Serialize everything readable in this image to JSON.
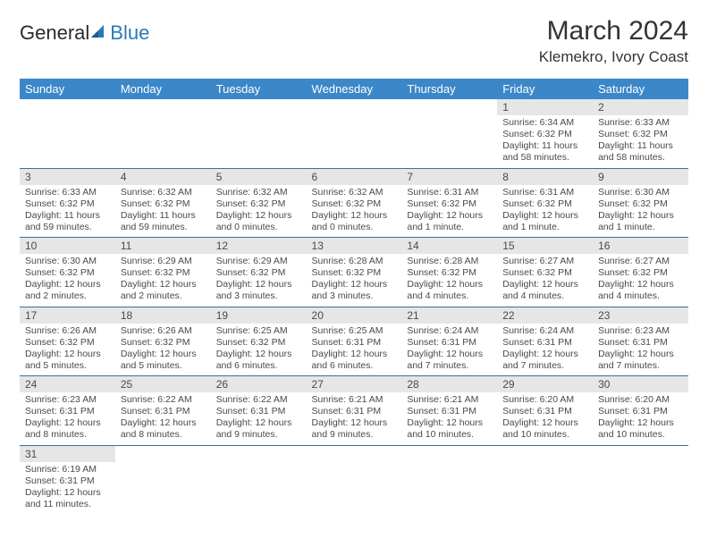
{
  "logo": {
    "text_a": "General",
    "text_b": "Blue"
  },
  "title": "March 2024",
  "location": "Klemekro, Ivory Coast",
  "colors": {
    "header_bg": "#3b87c8",
    "header_text": "#ffffff",
    "daynum_bg": "#e6e6e6",
    "row_border": "#3b6fa0",
    "logo_blue": "#2a7ab8"
  },
  "weekdays": [
    "Sunday",
    "Monday",
    "Tuesday",
    "Wednesday",
    "Thursday",
    "Friday",
    "Saturday"
  ],
  "weeks": [
    [
      null,
      null,
      null,
      null,
      null,
      {
        "n": "1",
        "sr": "Sunrise: 6:34 AM",
        "ss": "Sunset: 6:32 PM",
        "dl": "Daylight: 11 hours and 58 minutes."
      },
      {
        "n": "2",
        "sr": "Sunrise: 6:33 AM",
        "ss": "Sunset: 6:32 PM",
        "dl": "Daylight: 11 hours and 58 minutes."
      }
    ],
    [
      {
        "n": "3",
        "sr": "Sunrise: 6:33 AM",
        "ss": "Sunset: 6:32 PM",
        "dl": "Daylight: 11 hours and 59 minutes."
      },
      {
        "n": "4",
        "sr": "Sunrise: 6:32 AM",
        "ss": "Sunset: 6:32 PM",
        "dl": "Daylight: 11 hours and 59 minutes."
      },
      {
        "n": "5",
        "sr": "Sunrise: 6:32 AM",
        "ss": "Sunset: 6:32 PM",
        "dl": "Daylight: 12 hours and 0 minutes."
      },
      {
        "n": "6",
        "sr": "Sunrise: 6:32 AM",
        "ss": "Sunset: 6:32 PM",
        "dl": "Daylight: 12 hours and 0 minutes."
      },
      {
        "n": "7",
        "sr": "Sunrise: 6:31 AM",
        "ss": "Sunset: 6:32 PM",
        "dl": "Daylight: 12 hours and 1 minute."
      },
      {
        "n": "8",
        "sr": "Sunrise: 6:31 AM",
        "ss": "Sunset: 6:32 PM",
        "dl": "Daylight: 12 hours and 1 minute."
      },
      {
        "n": "9",
        "sr": "Sunrise: 6:30 AM",
        "ss": "Sunset: 6:32 PM",
        "dl": "Daylight: 12 hours and 1 minute."
      }
    ],
    [
      {
        "n": "10",
        "sr": "Sunrise: 6:30 AM",
        "ss": "Sunset: 6:32 PM",
        "dl": "Daylight: 12 hours and 2 minutes."
      },
      {
        "n": "11",
        "sr": "Sunrise: 6:29 AM",
        "ss": "Sunset: 6:32 PM",
        "dl": "Daylight: 12 hours and 2 minutes."
      },
      {
        "n": "12",
        "sr": "Sunrise: 6:29 AM",
        "ss": "Sunset: 6:32 PM",
        "dl": "Daylight: 12 hours and 3 minutes."
      },
      {
        "n": "13",
        "sr": "Sunrise: 6:28 AM",
        "ss": "Sunset: 6:32 PM",
        "dl": "Daylight: 12 hours and 3 minutes."
      },
      {
        "n": "14",
        "sr": "Sunrise: 6:28 AM",
        "ss": "Sunset: 6:32 PM",
        "dl": "Daylight: 12 hours and 4 minutes."
      },
      {
        "n": "15",
        "sr": "Sunrise: 6:27 AM",
        "ss": "Sunset: 6:32 PM",
        "dl": "Daylight: 12 hours and 4 minutes."
      },
      {
        "n": "16",
        "sr": "Sunrise: 6:27 AM",
        "ss": "Sunset: 6:32 PM",
        "dl": "Daylight: 12 hours and 4 minutes."
      }
    ],
    [
      {
        "n": "17",
        "sr": "Sunrise: 6:26 AM",
        "ss": "Sunset: 6:32 PM",
        "dl": "Daylight: 12 hours and 5 minutes."
      },
      {
        "n": "18",
        "sr": "Sunrise: 6:26 AM",
        "ss": "Sunset: 6:32 PM",
        "dl": "Daylight: 12 hours and 5 minutes."
      },
      {
        "n": "19",
        "sr": "Sunrise: 6:25 AM",
        "ss": "Sunset: 6:32 PM",
        "dl": "Daylight: 12 hours and 6 minutes."
      },
      {
        "n": "20",
        "sr": "Sunrise: 6:25 AM",
        "ss": "Sunset: 6:31 PM",
        "dl": "Daylight: 12 hours and 6 minutes."
      },
      {
        "n": "21",
        "sr": "Sunrise: 6:24 AM",
        "ss": "Sunset: 6:31 PM",
        "dl": "Daylight: 12 hours and 7 minutes."
      },
      {
        "n": "22",
        "sr": "Sunrise: 6:24 AM",
        "ss": "Sunset: 6:31 PM",
        "dl": "Daylight: 12 hours and 7 minutes."
      },
      {
        "n": "23",
        "sr": "Sunrise: 6:23 AM",
        "ss": "Sunset: 6:31 PM",
        "dl": "Daylight: 12 hours and 7 minutes."
      }
    ],
    [
      {
        "n": "24",
        "sr": "Sunrise: 6:23 AM",
        "ss": "Sunset: 6:31 PM",
        "dl": "Daylight: 12 hours and 8 minutes."
      },
      {
        "n": "25",
        "sr": "Sunrise: 6:22 AM",
        "ss": "Sunset: 6:31 PM",
        "dl": "Daylight: 12 hours and 8 minutes."
      },
      {
        "n": "26",
        "sr": "Sunrise: 6:22 AM",
        "ss": "Sunset: 6:31 PM",
        "dl": "Daylight: 12 hours and 9 minutes."
      },
      {
        "n": "27",
        "sr": "Sunrise: 6:21 AM",
        "ss": "Sunset: 6:31 PM",
        "dl": "Daylight: 12 hours and 9 minutes."
      },
      {
        "n": "28",
        "sr": "Sunrise: 6:21 AM",
        "ss": "Sunset: 6:31 PM",
        "dl": "Daylight: 12 hours and 10 minutes."
      },
      {
        "n": "29",
        "sr": "Sunrise: 6:20 AM",
        "ss": "Sunset: 6:31 PM",
        "dl": "Daylight: 12 hours and 10 minutes."
      },
      {
        "n": "30",
        "sr": "Sunrise: 6:20 AM",
        "ss": "Sunset: 6:31 PM",
        "dl": "Daylight: 12 hours and 10 minutes."
      }
    ],
    [
      {
        "n": "31",
        "sr": "Sunrise: 6:19 AM",
        "ss": "Sunset: 6:31 PM",
        "dl": "Daylight: 12 hours and 11 minutes."
      },
      null,
      null,
      null,
      null,
      null,
      null
    ]
  ]
}
